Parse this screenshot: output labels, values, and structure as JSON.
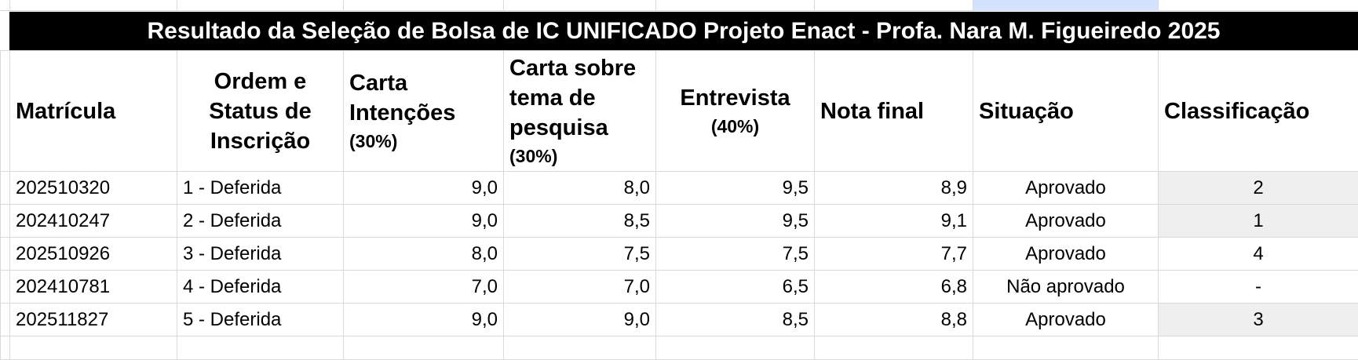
{
  "title": "Resultado da Seleção de Bolsa de IC UNIFICADO Projeto Enact - Profa. Nara M. Figueiredo 2025",
  "headers": {
    "matricula": "Matrícula",
    "ordem": [
      "Ordem e",
      "Status de",
      "Inscrição"
    ],
    "carta_intencoes": [
      "Carta",
      "Intenções"
    ],
    "carta_intencoes_pct": "(30%)",
    "carta_tema": [
      "Carta sobre",
      "tema de",
      "pesquisa"
    ],
    "carta_tema_pct": "(30%)",
    "entrevista": "Entrevista",
    "entrevista_pct": "(40%)",
    "nota_final": "Nota final",
    "situacao": "Situação",
    "classificacao": "Classificação"
  },
  "rows": [
    {
      "matricula": "202510320",
      "ordem": "1 - Deferida",
      "carta_intencoes": "9,0",
      "carta_tema": "8,0",
      "entrevista": "9,5",
      "nota_final": "8,9",
      "situacao": "Aprovado",
      "classificacao": "2"
    },
    {
      "matricula": "202410247",
      "ordem": "2 - Deferida",
      "carta_intencoes": "9,0",
      "carta_tema": "8,5",
      "entrevista": "9,5",
      "nota_final": "9,1",
      "situacao": "Aprovado",
      "classificacao": "1"
    },
    {
      "matricula": "202510926",
      "ordem": "3 - Deferida",
      "carta_intencoes": "8,0",
      "carta_tema": "7,5",
      "entrevista": "7,5",
      "nota_final": "7,7",
      "situacao": "Aprovado",
      "classificacao": "4"
    },
    {
      "matricula": "202410781",
      "ordem": "4 - Deferida",
      "carta_intencoes": "7,0",
      "carta_tema": "7,0",
      "entrevista": "6,5",
      "nota_final": "6,8",
      "situacao": "Não aprovado",
      "classificacao": "-"
    },
    {
      "matricula": "202511827",
      "ordem": "5 - Deferida",
      "carta_intencoes": "9,0",
      "carta_tema": "9,0",
      "entrevista": "8,5",
      "nota_final": "8,8",
      "situacao": "Aprovado",
      "classificacao": "3"
    }
  ]
}
